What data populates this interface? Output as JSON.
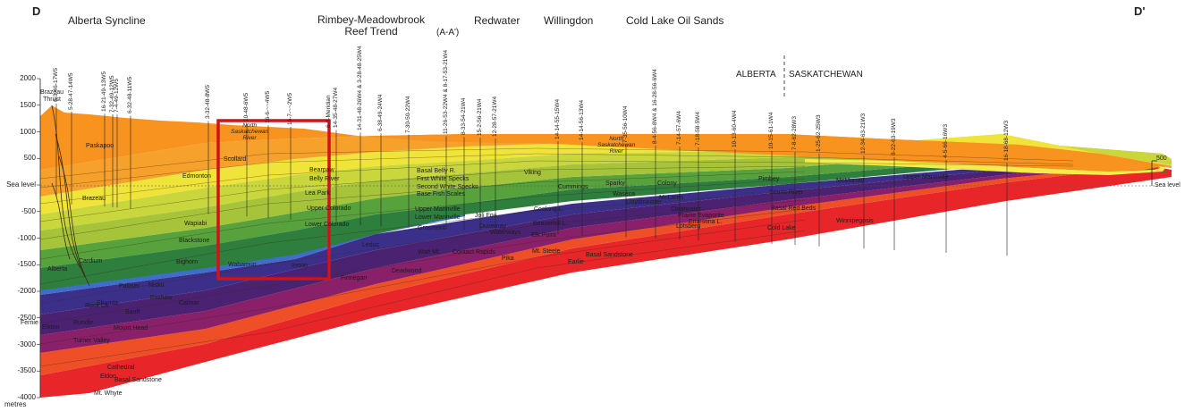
{
  "section": {
    "start_label": "D",
    "end_label": "D'",
    "units": "metres",
    "sea_level": "Sea level",
    "scale_bar": "500"
  },
  "y_axis": {
    "ticks": [
      "2000",
      "1500",
      "1000",
      "500",
      "Sea level",
      "-500",
      "-1000",
      "-1500",
      "-2000",
      "-2500",
      "-3000",
      "-3500",
      "-4000"
    ]
  },
  "regions": [
    {
      "id": "alberta-syncline",
      "text": "Alberta Syncline"
    },
    {
      "id": "rimbey",
      "text": "Rimbey-Meadowbrook\nReef Trend"
    },
    {
      "id": "aa",
      "text": "(A-A')"
    },
    {
      "id": "redwater",
      "text": "Redwater"
    },
    {
      "id": "willingdon",
      "text": "Willingdon"
    },
    {
      "id": "coldlake-oilsands",
      "text": "Cold Lake Oil Sands"
    }
  ],
  "border": {
    "left": "ALBERTA",
    "right": "SASKATCHEWAN"
  },
  "features": {
    "brazeau_thrust": "Brazeau\nThrust",
    "river1": "North\nSaskatchewan\nRiver",
    "river2": "North\nSaskatchewan\nRiver"
  },
  "wells": [
    "6-3-46-17W5",
    "5-28-47-14W5",
    "16-21-49-13W5",
    "7-32-49-12W5",
    "7-4-49-12W5",
    "6-32-48-11W5",
    "3-32-48-8W5",
    "10-48-6W5",
    "16-6-~~4W5",
    "16-7-~~2W5",
    "6-?-Meridian",
    "14-35-48-27W4",
    "14-31-48-26W4 & 3-28-48-25W4",
    "6-38-49-24W4",
    "7-30-50-22W4",
    "11-26-53-22W4 & 8-17-53-21W4",
    "8-33-54-21W4",
    "15-2-56-21W4",
    "12-28-57-21W4",
    "14-14-55-15W4",
    "14-14-56-13W4",
    "7-35-56-10W4",
    "8-4-56-8W4 & 16-28-56-6W4",
    "7-14-57-6W4",
    "7-18-58-5W4",
    "10-13-60-4W4",
    "10-15-61-1W4",
    "7-8-62-28W3",
    "1-25-62-25W3",
    "12-34-63-21W3",
    "8-22-63-19W3",
    "4-5-66-16W3",
    "16-18-68-12W3"
  ],
  "formations": [
    {
      "name": "Paskapoo"
    },
    {
      "name": "Edmonton"
    },
    {
      "name": "Scollard"
    },
    {
      "name": "Brazeau"
    },
    {
      "name": "Wapiabi"
    },
    {
      "name": "Blackstone"
    },
    {
      "name": "Bighorn"
    },
    {
      "name": "Cardium"
    },
    {
      "name": "Alberta"
    },
    {
      "name": "Fernie"
    },
    {
      "name": "Rock Ck"
    },
    {
      "name": "Belly River"
    },
    {
      "name": "Bearpaw"
    },
    {
      "name": "Lea Park"
    },
    {
      "name": "Upper Colorado"
    },
    {
      "name": "Lower Colorado"
    },
    {
      "name": "Wabamun"
    },
    {
      "name": "Ireton"
    },
    {
      "name": "Leduc"
    },
    {
      "name": "Basal Belly R."
    },
    {
      "name": "First White Specks"
    },
    {
      "name": "Second White Specks"
    },
    {
      "name": "Base Fish Scales"
    },
    {
      "name": "Upper Mannville"
    },
    {
      "name": "Lower Mannville"
    },
    {
      "name": "Viking"
    },
    {
      "name": "Joli Fou"
    },
    {
      "name": "Grosmont"
    },
    {
      "name": "Duvernay"
    },
    {
      "name": "Beaverhill L."
    },
    {
      "name": "Cooking L."
    },
    {
      "name": "Waterways"
    },
    {
      "name": "Watt Mt."
    },
    {
      "name": "Contact Rapids"
    },
    {
      "name": "Elk Point"
    },
    {
      "name": "Mt. Steele"
    },
    {
      "name": "Finnegan"
    },
    {
      "name": "Deadwood"
    },
    {
      "name": "Pika"
    },
    {
      "name": "Earlie"
    },
    {
      "name": "Basal Sandstone"
    },
    {
      "name": "Cummings"
    },
    {
      "name": "Sparky"
    },
    {
      "name": "Colony"
    },
    {
      "name": "Waseca"
    },
    {
      "name": "McLaren"
    },
    {
      "name": "Lloydminster"
    },
    {
      "name": "Clearwater"
    },
    {
      "name": "McMurray"
    },
    {
      "name": "Upper Mannville"
    },
    {
      "name": "Prairie Evaporite"
    },
    {
      "name": "Winnipegosis"
    },
    {
      "name": "Cold Lake"
    },
    {
      "name": "Basal Red Beds"
    },
    {
      "name": "Ernestina L."
    },
    {
      "name": "Lotsberg"
    },
    {
      "name": "Pimbey"
    },
    {
      "name": "Souris River"
    },
    {
      "name": "Nisku"
    },
    {
      "name": "Calmar"
    },
    {
      "name": "Palliser"
    },
    {
      "name": "Exshaw"
    },
    {
      "name": "Banff"
    },
    {
      "name": "Rundle"
    },
    {
      "name": "Shunda"
    },
    {
      "name": "Elkton"
    },
    {
      "name": "Turner Valley"
    },
    {
      "name": "Mount Head"
    },
    {
      "name": "Mt. Whyte"
    },
    {
      "name": "Cathedral"
    },
    {
      "name": "Eldon"
    },
    {
      "name": "Basal Sandstone"
    }
  ],
  "highlight_box_color": "#d0131b"
}
